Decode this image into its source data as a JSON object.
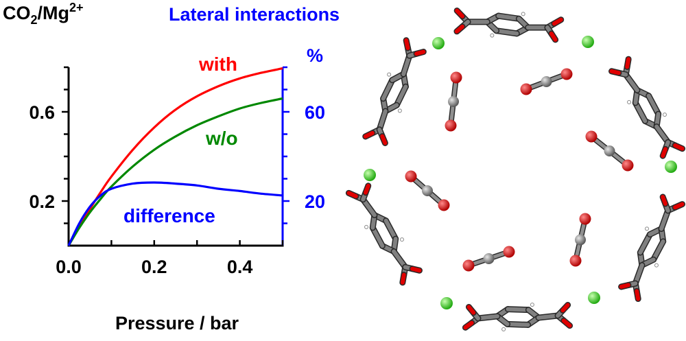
{
  "chart_data": {
    "type": "line",
    "ylabel_left": "CO2/Mg2+",
    "ylabel_left_parts": {
      "a": "CO",
      "sub": "2",
      "b": "/Mg",
      "sup": "2+"
    },
    "ylabel_right": "Lateral interactions",
    "ylabel_right_unit": "%",
    "xlabel": "Pressure / bar",
    "xlim": [
      0,
      0.5
    ],
    "ylim": [
      0,
      0.8
    ],
    "y2lim": [
      0,
      80
    ],
    "x_ticks": [
      0.0,
      0.2,
      0.4
    ],
    "x_tick_labels": [
      "0.0",
      "0.2",
      "0.4"
    ],
    "y_ticks": [
      0.2,
      0.6
    ],
    "y_tick_labels": [
      "0.2",
      "0.6"
    ],
    "y2_ticks": [
      20,
      60
    ],
    "y2_tick_labels": [
      "20",
      "60"
    ],
    "grid": false,
    "series": [
      {
        "name": "with",
        "axis": "left",
        "color": "#ff0000",
        "x": [
          0,
          0.025,
          0.05,
          0.075,
          0.1,
          0.15,
          0.2,
          0.25,
          0.3,
          0.35,
          0.4,
          0.45,
          0.5
        ],
        "y": [
          0,
          0.085,
          0.165,
          0.24,
          0.31,
          0.43,
          0.53,
          0.61,
          0.67,
          0.715,
          0.75,
          0.775,
          0.795
        ]
      },
      {
        "name": "w/o",
        "axis": "left",
        "color": "#008800",
        "x": [
          0,
          0.025,
          0.05,
          0.075,
          0.1,
          0.15,
          0.2,
          0.25,
          0.3,
          0.35,
          0.4,
          0.45,
          0.5
        ],
        "y": [
          0,
          0.08,
          0.15,
          0.21,
          0.265,
          0.355,
          0.43,
          0.49,
          0.54,
          0.58,
          0.615,
          0.64,
          0.66
        ]
      },
      {
        "name": "difference",
        "axis": "right",
        "color": "#0000ff",
        "x": [
          0,
          0.025,
          0.05,
          0.075,
          0.1,
          0.15,
          0.2,
          0.25,
          0.3,
          0.35,
          0.4,
          0.45,
          0.5
        ],
        "y": [
          0,
          10,
          17.5,
          22.5,
          25.5,
          27.8,
          28.3,
          27.8,
          27,
          25.5,
          24.5,
          23.3,
          22.5
        ]
      }
    ]
  },
  "colors": {
    "axis": "#000000",
    "right_axis": "#0000ff",
    "carbon": "#808080",
    "oxygen": "#e00000",
    "magnesium": "#33cc33",
    "hydrogen": "#ffffff"
  },
  "structure_image": {
    "atoms": [
      "magnesium",
      "oxygen",
      "carbon",
      "hydrogen"
    ]
  }
}
